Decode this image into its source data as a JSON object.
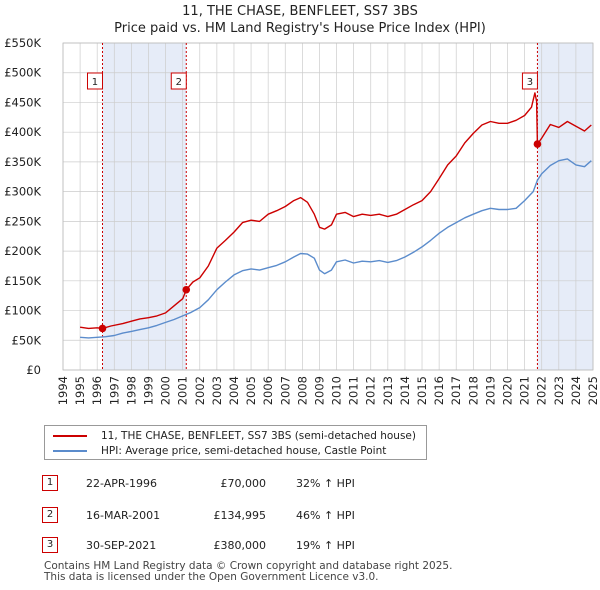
{
  "title_line1": "11, THE CHASE, BENFLEET, SS7 3BS",
  "title_line2": "Price paid vs. HM Land Registry's House Price Index (HPI)",
  "colors": {
    "property": "#cc0000",
    "hpi": "#5b8ccc",
    "shade": "#e6ecf8",
    "grid": "#cccccc",
    "marker": "#cc0000"
  },
  "chart_data": {
    "type": "line",
    "xlim": [
      1994.0,
      2025.0
    ],
    "ylim": [
      0,
      550000
    ],
    "y_ticks": [
      0,
      50000,
      100000,
      150000,
      200000,
      250000,
      300000,
      350000,
      400000,
      450000,
      500000,
      550000
    ],
    "y_tick_labels": [
      "£0",
      "£50K",
      "£100K",
      "£150K",
      "£200K",
      "£250K",
      "£300K",
      "£350K",
      "£400K",
      "£450K",
      "£500K",
      "£550K"
    ],
    "x_ticks": [
      1994,
      1995,
      1996,
      1997,
      1998,
      1999,
      2000,
      2001,
      2002,
      2003,
      2004,
      2005,
      2006,
      2007,
      2008,
      2009,
      2010,
      2011,
      2012,
      2013,
      2014,
      2015,
      2016,
      2017,
      2018,
      2019,
      2020,
      2021,
      2022,
      2023,
      2024,
      2025
    ],
    "x_tick_labels": [
      "1994",
      "1995",
      "1996",
      "1997",
      "1998",
      "1999",
      "2000",
      "2001",
      "2002",
      "2003",
      "2004",
      "2005",
      "2006",
      "2007",
      "2008",
      "2009",
      "2010",
      "2011",
      "2012",
      "2013",
      "2014",
      "2015",
      "2016",
      "2017",
      "2018",
      "2019",
      "2020",
      "2021",
      "2022",
      "2023",
      "2024",
      "2025"
    ],
    "grid": true,
    "series": [
      {
        "name": "11, THE CHASE, BENFLEET, SS7 3BS (semi-detached house)",
        "color": "#cc0000",
        "x": [
          1995.0,
          1995.5,
          1996.0,
          1996.31,
          1996.8,
          1997.5,
          1998.0,
          1998.5,
          1999.0,
          1999.5,
          2000.0,
          2000.5,
          2001.0,
          2001.21,
          2001.6,
          2002.0,
          2002.5,
          2003.0,
          2003.5,
          2004.0,
          2004.5,
          2005.0,
          2005.5,
          2006.0,
          2006.5,
          2007.0,
          2007.5,
          2007.9,
          2008.3,
          2008.7,
          2009.0,
          2009.3,
          2009.7,
          2010.0,
          2010.5,
          2011.0,
          2011.5,
          2012.0,
          2012.5,
          2013.0,
          2013.5,
          2014.0,
          2014.5,
          2015.0,
          2015.5,
          2016.0,
          2016.5,
          2017.0,
          2017.5,
          2018.0,
          2018.5,
          2019.0,
          2019.5,
          2020.0,
          2020.5,
          2021.0,
          2021.4,
          2021.6,
          2021.7,
          2021.75,
          2022.0,
          2022.5,
          2023.0,
          2023.5,
          2024.0,
          2024.5,
          2024.9
        ],
        "values": [
          72000,
          70000,
          71000,
          70000,
          74000,
          78000,
          82000,
          86000,
          88000,
          91000,
          96000,
          108000,
          120000,
          134995,
          148000,
          155000,
          175000,
          205000,
          218000,
          232000,
          248000,
          252000,
          250000,
          262000,
          268000,
          275000,
          285000,
          290000,
          282000,
          262000,
          240000,
          237000,
          244000,
          262000,
          265000,
          258000,
          262000,
          260000,
          262000,
          258000,
          262000,
          270000,
          278000,
          285000,
          300000,
          322000,
          345000,
          360000,
          382000,
          398000,
          412000,
          418000,
          415000,
          415000,
          420000,
          428000,
          442000,
          466000,
          452000,
          380000,
          390000,
          413000,
          408000,
          418000,
          410000,
          402000,
          412000
        ]
      },
      {
        "name": "HPI: Average price, semi-detached house, Castle Point",
        "color": "#5b8ccc",
        "x": [
          1995.0,
          1995.5,
          1996.0,
          1996.5,
          1997.0,
          1997.5,
          1998.0,
          1998.5,
          1999.0,
          1999.5,
          2000.0,
          2000.5,
          2001.0,
          2001.5,
          2002.0,
          2002.5,
          2003.0,
          2003.5,
          2004.0,
          2004.5,
          2005.0,
          2005.5,
          2006.0,
          2006.5,
          2007.0,
          2007.5,
          2007.9,
          2008.3,
          2008.7,
          2009.0,
          2009.3,
          2009.7,
          2010.0,
          2010.5,
          2011.0,
          2011.5,
          2012.0,
          2012.5,
          2013.0,
          2013.5,
          2014.0,
          2014.5,
          2015.0,
          2015.5,
          2016.0,
          2016.5,
          2017.0,
          2017.5,
          2018.0,
          2018.5,
          2019.0,
          2019.5,
          2020.0,
          2020.5,
          2021.0,
          2021.5,
          2021.75,
          2022.0,
          2022.5,
          2023.0,
          2023.5,
          2024.0,
          2024.5,
          2024.9
        ],
        "values": [
          55000,
          54000,
          55000,
          56000,
          58000,
          62000,
          65000,
          68000,
          71000,
          75000,
          80000,
          85000,
          91000,
          97000,
          105000,
          118000,
          135000,
          148000,
          160000,
          167000,
          170000,
          168000,
          172000,
          176000,
          182000,
          190000,
          196000,
          195000,
          188000,
          168000,
          162000,
          168000,
          182000,
          185000,
          180000,
          183000,
          182000,
          184000,
          181000,
          184000,
          190000,
          198000,
          207000,
          218000,
          230000,
          240000,
          248000,
          256000,
          262000,
          268000,
          272000,
          270000,
          270000,
          272000,
          285000,
          300000,
          319000,
          330000,
          344000,
          352000,
          355000,
          345000,
          342000,
          352000
        ]
      }
    ],
    "sales": [
      {
        "label": "1",
        "x": 1996.31,
        "value": 70000
      },
      {
        "label": "2",
        "x": 2001.21,
        "value": 134995
      },
      {
        "label": "3",
        "x": 2021.75,
        "value": 380000
      }
    ]
  },
  "legend": {
    "property": "11, THE CHASE, BENFLEET, SS7 3BS (semi-detached house)",
    "hpi": "HPI: Average price, semi-detached house, Castle Point"
  },
  "transactions": [
    {
      "num": "1",
      "date": "22-APR-1996",
      "price": "£70,000",
      "hpi": "32% ↑ HPI"
    },
    {
      "num": "2",
      "date": "16-MAR-2001",
      "price": "£134,995",
      "hpi": "46% ↑ HPI"
    },
    {
      "num": "3",
      "date": "30-SEP-2021",
      "price": "£380,000",
      "hpi": "19% ↑ HPI"
    }
  ],
  "footer_line1": "Contains HM Land Registry data © Crown copyright and database right 2025.",
  "footer_line2": "This data is licensed under the Open Government Licence v3.0."
}
